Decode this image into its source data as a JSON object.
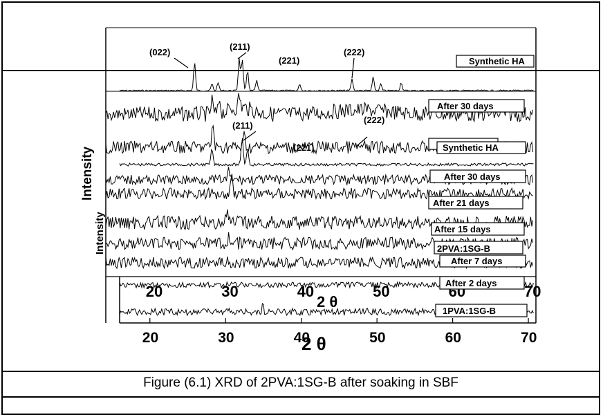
{
  "caption": "Figure (6.1) XRD of 2PVA:1SG-B after soaking in SBF",
  "chart_data": {
    "type": "line",
    "xlabel": "2 θ",
    "ylabel": "Intensity",
    "xticks": [
      "20",
      "30",
      "40",
      "50",
      "60",
      "70"
    ],
    "xlim": [
      16,
      71
    ],
    "peak_labels": [
      "(022)",
      "(211)",
      "(221)",
      "(222)"
    ],
    "legend_outer": [
      "Synthetic HA",
      "After 30 days",
      "Synthetic HA",
      "After 30 days",
      "After 21 days",
      "After 15 days",
      "2PVA:1SG-B",
      "After 7 days",
      "After 2 days",
      "1PVA:1SG-B"
    ],
    "inner_xticks": [
      "20",
      "30",
      "40",
      "50",
      "60",
      "70"
    ],
    "inner_xlabel": "2 θ",
    "inner_ylabel": "Intensity",
    "inner_peak_labels": [
      "(211)",
      "(221)",
      "(222)"
    ],
    "synthetic_ha_peaks": [
      {
        "x": 25.9,
        "h": 0.85
      },
      {
        "x": 28.2,
        "h": 0.2
      },
      {
        "x": 29.0,
        "h": 0.25
      },
      {
        "x": 31.8,
        "h": 1.0
      },
      {
        "x": 32.2,
        "h": 0.95
      },
      {
        "x": 32.9,
        "h": 0.6
      },
      {
        "x": 34.1,
        "h": 0.3
      },
      {
        "x": 39.8,
        "h": 0.2
      },
      {
        "x": 46.7,
        "h": 0.35
      },
      {
        "x": 49.5,
        "h": 0.4
      },
      {
        "x": 50.5,
        "h": 0.2
      },
      {
        "x": 53.2,
        "h": 0.25
      }
    ]
  }
}
